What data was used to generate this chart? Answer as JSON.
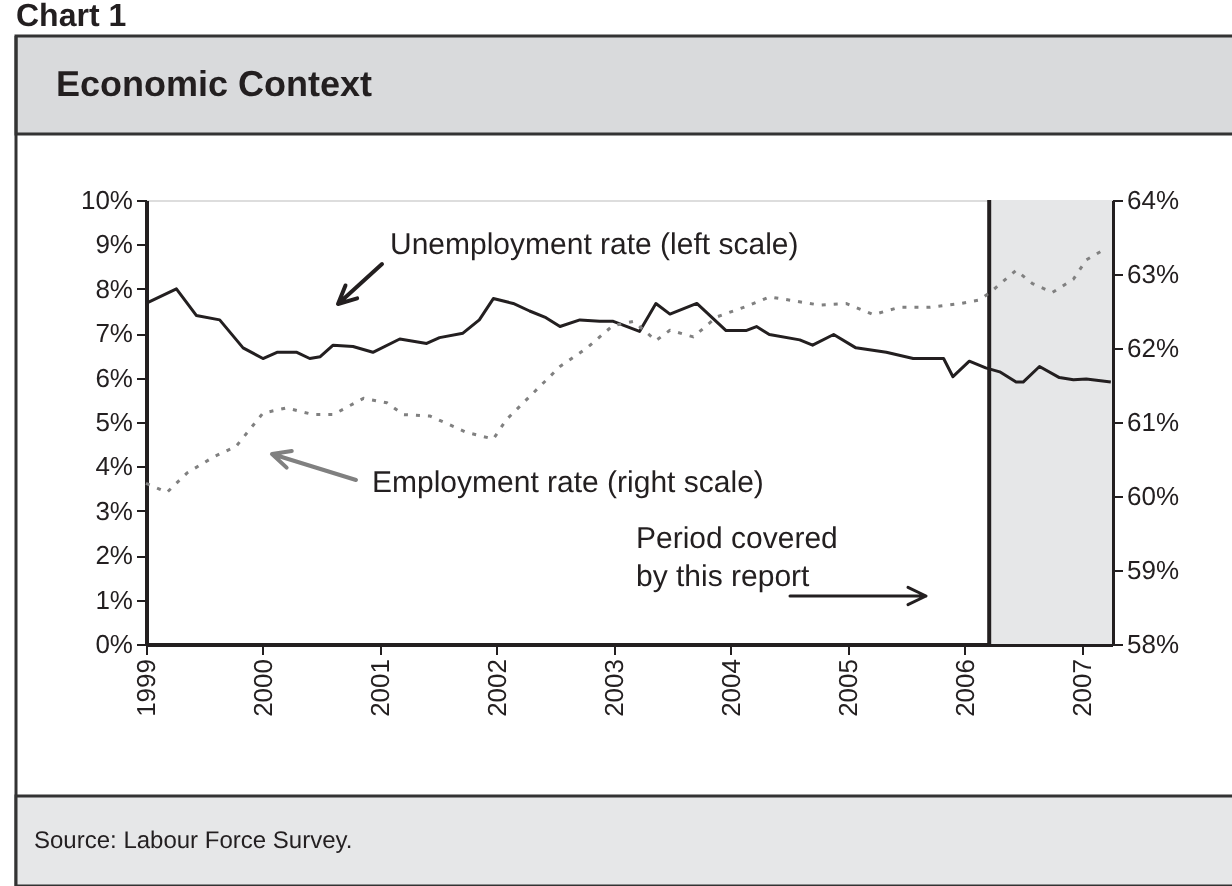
{
  "chart_data": {
    "type": "line",
    "title": "Economic Context",
    "subtitle": "Chart 1",
    "xlim": [
      1999,
      2007.26
    ],
    "xticks": [
      1999,
      2000,
      2001,
      2002,
      2003,
      2004,
      2005,
      2006,
      2007
    ],
    "ylim": [
      0,
      10
    ],
    "yticks": [
      {
        "value": 0,
        "label": "0%"
      },
      {
        "value": 1,
        "label": "1%"
      },
      {
        "value": 2,
        "label": "2%"
      },
      {
        "value": 3,
        "label": "3%"
      },
      {
        "value": 4,
        "label": "4%"
      },
      {
        "value": 5,
        "label": "5%"
      },
      {
        "value": 6,
        "label": "6%"
      },
      {
        "value": 7,
        "label": "7%"
      },
      {
        "value": 8,
        "label": "8%"
      },
      {
        "value": 9,
        "label": "9%"
      },
      {
        "value": 10,
        "label": "10%"
      }
    ],
    "y2lim": [
      58,
      64
    ],
    "y2ticks": [
      {
        "value": 58,
        "label": "58%"
      },
      {
        "value": 59,
        "label": "59%"
      },
      {
        "value": 60,
        "label": "60%"
      },
      {
        "value": 61,
        "label": "61%"
      },
      {
        "value": 62,
        "label": "62%"
      },
      {
        "value": 63,
        "label": "63%"
      },
      {
        "value": 64,
        "label": "64%"
      }
    ],
    "grid": false,
    "series": [
      {
        "name": "Unemployment rate (left scale)",
        "color": "#231f20",
        "line_style": "solid",
        "x": [
          1999.0,
          1999.26,
          1999.43,
          1999.63,
          1999.83,
          2000.0,
          2000.12,
          2000.29,
          2000.4,
          2000.49,
          2000.6,
          2000.77,
          2000.94,
          2001.17,
          2001.4,
          2001.51,
          2001.71,
          2001.85,
          2001.97,
          2002.14,
          2002.28,
          2002.42,
          2002.54,
          2002.71,
          2002.88,
          2002.99,
          2003.22,
          2003.36,
          2003.48,
          2003.71,
          2003.96,
          2004.13,
          2004.22,
          2004.33,
          2004.59,
          2004.7,
          2004.88,
          2005.07,
          2005.33,
          2005.56,
          2005.82,
          2005.9,
          2006.04,
          2006.18,
          2006.3,
          2006.44,
          2006.5,
          2006.64,
          2006.81,
          2006.93,
          2007.04,
          2007.25
        ],
        "values": [
          7.67,
          8.0,
          7.4,
          7.3,
          6.67,
          6.43,
          6.57,
          6.57,
          6.43,
          6.47,
          6.73,
          6.7,
          6.57,
          6.87,
          6.77,
          6.9,
          7.0,
          7.3,
          7.78,
          7.67,
          7.5,
          7.35,
          7.15,
          7.3,
          7.27,
          7.27,
          7.04,
          7.67,
          7.43,
          7.67,
          7.06,
          7.06,
          7.15,
          6.97,
          6.85,
          6.73,
          6.97,
          6.67,
          6.57,
          6.43,
          6.43,
          6.02,
          6.37,
          6.22,
          6.13,
          5.9,
          5.9,
          6.25,
          6.0,
          5.95,
          5.97,
          5.9
        ]
      },
      {
        "name": "Employment rate (right scale)",
        "color": "#808080",
        "line_style": "dotted",
        "axis": "y2",
        "x": [
          1999.0,
          1999.18,
          1999.35,
          1999.58,
          1999.77,
          2000.0,
          2000.2,
          2000.43,
          2000.6,
          2000.86,
          2001.06,
          2001.2,
          2001.43,
          2001.74,
          2001.97,
          2002.08,
          2002.31,
          2002.54,
          2002.77,
          2002.99,
          2003.17,
          2003.36,
          2003.48,
          2003.68,
          2003.88,
          2004.13,
          2004.33,
          2004.53,
          2004.76,
          2004.99,
          2005.22,
          2005.44,
          2005.7,
          2005.96,
          2006.13,
          2006.24,
          2006.44,
          2006.58,
          2006.75,
          2006.93,
          2007.04,
          2007.18
        ],
        "values": [
          60.17,
          60.05,
          60.31,
          60.53,
          60.67,
          61.12,
          61.19,
          61.1,
          61.1,
          61.32,
          61.26,
          61.1,
          61.08,
          60.86,
          60.77,
          61.03,
          61.39,
          61.75,
          62.0,
          62.3,
          62.36,
          62.1,
          62.24,
          62.15,
          62.42,
          62.56,
          62.69,
          62.64,
          62.58,
          62.6,
          62.45,
          62.55,
          62.55,
          62.6,
          62.65,
          62.78,
          63.05,
          62.87,
          62.75,
          62.93,
          63.19,
          63.32
        ]
      }
    ],
    "ref_lines": [
      {
        "axis": "x",
        "value": 2006.21,
        "color": "#231f20",
        "line_style": "solid"
      }
    ],
    "bands": [
      {
        "axis": "x",
        "from": 2006.21,
        "to": 2007.26,
        "color": "#e6e7e8"
      }
    ],
    "annotations": [
      "Period covered\nby this report",
      "Source: Labour Force Survey."
    ]
  }
}
